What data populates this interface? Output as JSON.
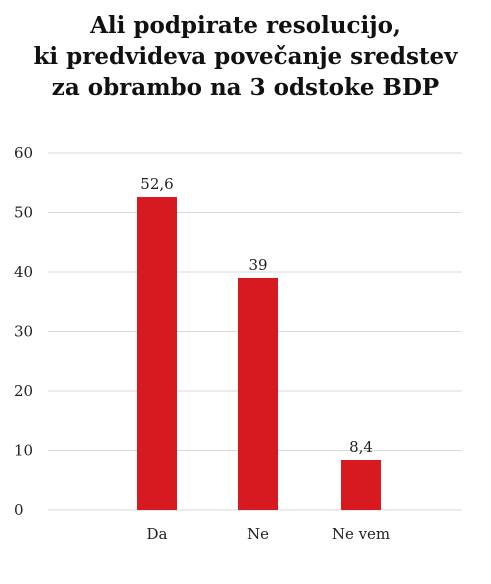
{
  "chart_data": {
    "type": "bar",
    "title": [
      "Ali podpirate resolucijo,",
      "ki predvideva povečanje sredstev",
      "za obrambo na 3 odstoke BDP"
    ],
    "categories": [
      "Da",
      "Ne",
      "Ne vem"
    ],
    "values": [
      52.6,
      39,
      8.4
    ],
    "value_labels": [
      "52,6",
      "39",
      "8,4"
    ],
    "yticks": [
      0,
      10,
      20,
      30,
      40,
      50,
      60
    ],
    "ylim": [
      0,
      60
    ],
    "xlabel": "",
    "ylabel": "",
    "grid": true,
    "bar_color": "#d71920",
    "grid_color": "#d9d9d9"
  }
}
